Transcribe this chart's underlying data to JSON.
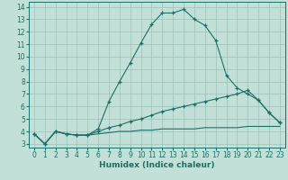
{
  "xlabel": "Humidex (Indice chaleur)",
  "bg_color": "#c2e0d8",
  "grid_color": "#9abfb8",
  "line_color": "#1a7068",
  "xlim": [
    -0.5,
    23.5
  ],
  "ylim": [
    2.7,
    14.4
  ],
  "xticks": [
    0,
    1,
    2,
    3,
    4,
    5,
    6,
    7,
    8,
    9,
    10,
    11,
    12,
    13,
    14,
    15,
    16,
    17,
    18,
    19,
    20,
    21,
    22,
    23
  ],
  "yticks": [
    3,
    4,
    5,
    6,
    7,
    8,
    9,
    10,
    11,
    12,
    13,
    14
  ],
  "line1_x": [
    0,
    1,
    2,
    3,
    4,
    5,
    6,
    7,
    8,
    9,
    10,
    11,
    12,
    13,
    14,
    15,
    16,
    17,
    18,
    19,
    20,
    21,
    22,
    23
  ],
  "line1_y": [
    3.8,
    3.0,
    4.0,
    3.8,
    3.7,
    3.7,
    4.2,
    6.4,
    8.0,
    9.5,
    11.1,
    12.6,
    13.5,
    13.5,
    13.8,
    13.0,
    12.5,
    11.3,
    8.5,
    7.5,
    7.0,
    6.5,
    5.5,
    4.7
  ],
  "line2_x": [
    0,
    1,
    2,
    3,
    4,
    5,
    6,
    7,
    8,
    9,
    10,
    11,
    12,
    13,
    14,
    15,
    16,
    17,
    18,
    19,
    20,
    21,
    22,
    23
  ],
  "line2_y": [
    3.8,
    3.0,
    4.0,
    3.8,
    3.7,
    3.7,
    4.0,
    4.3,
    4.5,
    4.8,
    5.0,
    5.3,
    5.6,
    5.8,
    6.0,
    6.2,
    6.4,
    6.6,
    6.8,
    7.0,
    7.3,
    6.5,
    5.5,
    4.7
  ],
  "line3_x": [
    0,
    1,
    2,
    3,
    4,
    5,
    6,
    7,
    8,
    9,
    10,
    11,
    12,
    13,
    14,
    15,
    16,
    17,
    18,
    19,
    20,
    21,
    22,
    23
  ],
  "line3_y": [
    3.8,
    3.0,
    4.0,
    3.8,
    3.7,
    3.7,
    3.8,
    3.9,
    4.0,
    4.0,
    4.1,
    4.1,
    4.2,
    4.2,
    4.2,
    4.2,
    4.3,
    4.3,
    4.3,
    4.3,
    4.4,
    4.4,
    4.4,
    4.4
  ],
  "xlabel_fontsize": 6.5,
  "tick_fontsize": 5.5
}
